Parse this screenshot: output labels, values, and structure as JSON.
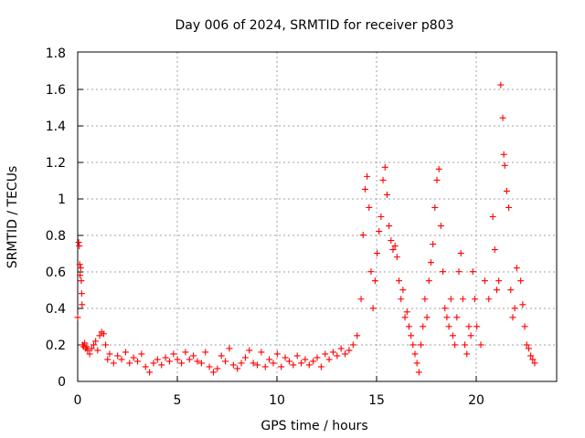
{
  "colors": {
    "series": "#ff0000",
    "grid": "#a0a0a0",
    "axis": "#000000",
    "background": "#ffffff"
  },
  "chart_data": {
    "type": "scatter",
    "title": "Day 006 of 2024, SRMTID for receiver p803",
    "xlabel": "GPS time / hours",
    "ylabel": "SRMTID / TECUs",
    "xlim": [
      0,
      24
    ],
    "ylim": [
      0,
      1.8
    ],
    "grid": true,
    "marker": "plus",
    "x_ticks": [
      0,
      5,
      10,
      15,
      20
    ],
    "x_tick_labels": [
      "0",
      "5",
      "10",
      "15",
      "20"
    ],
    "y_ticks": [
      0,
      0.2,
      0.4,
      0.6,
      0.8,
      1,
      1.2,
      1.4,
      1.6,
      1.8
    ],
    "y_tick_labels": [
      "0",
      "0.2",
      "0.4",
      "0.6",
      "0.8",
      "1",
      "1.2",
      "1.4",
      "1.6",
      "1.8"
    ],
    "series": [
      {
        "name": "SRMTID",
        "color": "#ff0000",
        "points": [
          [
            0.0,
            0.35
          ],
          [
            0.05,
            0.76
          ],
          [
            0.08,
            0.74
          ],
          [
            0.1,
            0.64
          ],
          [
            0.12,
            0.58
          ],
          [
            0.15,
            0.62
          ],
          [
            0.18,
            0.55
          ],
          [
            0.2,
            0.48
          ],
          [
            0.22,
            0.42
          ],
          [
            0.25,
            0.2
          ],
          [
            0.3,
            0.19
          ],
          [
            0.35,
            0.21
          ],
          [
            0.4,
            0.18
          ],
          [
            0.45,
            0.19
          ],
          [
            0.5,
            0.17
          ],
          [
            0.6,
            0.15
          ],
          [
            0.7,
            0.18
          ],
          [
            0.8,
            0.2
          ],
          [
            0.9,
            0.22
          ],
          [
            1.0,
            0.17
          ],
          [
            1.1,
            0.25
          ],
          [
            1.2,
            0.27
          ],
          [
            1.3,
            0.26
          ],
          [
            1.4,
            0.2
          ],
          [
            1.5,
            0.12
          ],
          [
            1.6,
            0.15
          ],
          [
            1.8,
            0.1
          ],
          [
            2.0,
            0.14
          ],
          [
            2.2,
            0.12
          ],
          [
            2.4,
            0.16
          ],
          [
            2.6,
            0.1
          ],
          [
            2.8,
            0.13
          ],
          [
            3.0,
            0.11
          ],
          [
            3.2,
            0.15
          ],
          [
            3.4,
            0.08
          ],
          [
            3.6,
            0.05
          ],
          [
            3.8,
            0.1
          ],
          [
            4.0,
            0.12
          ],
          [
            4.2,
            0.09
          ],
          [
            4.4,
            0.13
          ],
          [
            4.6,
            0.11
          ],
          [
            4.8,
            0.15
          ],
          [
            5.0,
            0.12
          ],
          [
            5.2,
            0.1
          ],
          [
            5.4,
            0.16
          ],
          [
            5.6,
            0.12
          ],
          [
            5.8,
            0.14
          ],
          [
            6.0,
            0.11
          ],
          [
            6.2,
            0.1
          ],
          [
            6.4,
            0.16
          ],
          [
            6.6,
            0.08
          ],
          [
            6.8,
            0.05
          ],
          [
            7.0,
            0.07
          ],
          [
            7.2,
            0.14
          ],
          [
            7.4,
            0.11
          ],
          [
            7.6,
            0.18
          ],
          [
            7.8,
            0.09
          ],
          [
            8.0,
            0.07
          ],
          [
            8.2,
            0.1
          ],
          [
            8.4,
            0.13
          ],
          [
            8.6,
            0.17
          ],
          [
            8.8,
            0.1
          ],
          [
            9.0,
            0.09
          ],
          [
            9.2,
            0.16
          ],
          [
            9.4,
            0.08
          ],
          [
            9.6,
            0.12
          ],
          [
            9.8,
            0.1
          ],
          [
            10.0,
            0.15
          ],
          [
            10.2,
            0.08
          ],
          [
            10.4,
            0.13
          ],
          [
            10.6,
            0.11
          ],
          [
            10.8,
            0.09
          ],
          [
            11.0,
            0.14
          ],
          [
            11.2,
            0.1
          ],
          [
            11.4,
            0.12
          ],
          [
            11.6,
            0.09
          ],
          [
            11.8,
            0.11
          ],
          [
            12.0,
            0.13
          ],
          [
            12.2,
            0.08
          ],
          [
            12.4,
            0.15
          ],
          [
            12.6,
            0.12
          ],
          [
            12.8,
            0.16
          ],
          [
            13.0,
            0.14
          ],
          [
            13.2,
            0.18
          ],
          [
            13.4,
            0.15
          ],
          [
            13.6,
            0.17
          ],
          [
            13.8,
            0.2
          ],
          [
            14.0,
            0.25
          ],
          [
            14.2,
            0.45
          ],
          [
            14.3,
            0.8
          ],
          [
            14.4,
            1.05
          ],
          [
            14.5,
            1.12
          ],
          [
            14.6,
            0.95
          ],
          [
            14.7,
            0.6
          ],
          [
            14.8,
            0.4
          ],
          [
            14.9,
            0.55
          ],
          [
            15.0,
            0.7
          ],
          [
            15.1,
            0.82
          ],
          [
            15.2,
            0.9
          ],
          [
            15.3,
            1.1
          ],
          [
            15.4,
            1.17
          ],
          [
            15.5,
            1.02
          ],
          [
            15.6,
            0.85
          ],
          [
            15.7,
            0.77
          ],
          [
            15.8,
            0.72
          ],
          [
            15.9,
            0.74
          ],
          [
            16.0,
            0.68
          ],
          [
            16.1,
            0.55
          ],
          [
            16.2,
            0.45
          ],
          [
            16.3,
            0.5
          ],
          [
            16.4,
            0.35
          ],
          [
            16.5,
            0.38
          ],
          [
            16.6,
            0.3
          ],
          [
            16.7,
            0.25
          ],
          [
            16.8,
            0.2
          ],
          [
            16.9,
            0.15
          ],
          [
            17.0,
            0.1
          ],
          [
            17.1,
            0.05
          ],
          [
            17.2,
            0.2
          ],
          [
            17.3,
            0.3
          ],
          [
            17.4,
            0.45
          ],
          [
            17.5,
            0.35
          ],
          [
            17.6,
            0.55
          ],
          [
            17.7,
            0.65
          ],
          [
            17.8,
            0.75
          ],
          [
            17.9,
            0.95
          ],
          [
            18.0,
            1.1
          ],
          [
            18.1,
            1.16
          ],
          [
            18.2,
            0.85
          ],
          [
            18.3,
            0.6
          ],
          [
            18.4,
            0.4
          ],
          [
            18.5,
            0.35
          ],
          [
            18.6,
            0.3
          ],
          [
            18.7,
            0.45
          ],
          [
            18.8,
            0.25
          ],
          [
            18.9,
            0.2
          ],
          [
            19.0,
            0.35
          ],
          [
            19.1,
            0.6
          ],
          [
            19.2,
            0.7
          ],
          [
            19.3,
            0.45
          ],
          [
            19.4,
            0.2
          ],
          [
            19.5,
            0.15
          ],
          [
            19.6,
            0.3
          ],
          [
            19.7,
            0.25
          ],
          [
            19.8,
            0.6
          ],
          [
            19.9,
            0.45
          ],
          [
            20.0,
            0.3
          ],
          [
            20.2,
            0.2
          ],
          [
            20.4,
            0.55
          ],
          [
            20.6,
            0.45
          ],
          [
            20.8,
            0.9
          ],
          [
            20.9,
            0.72
          ],
          [
            21.0,
            0.5
          ],
          [
            21.1,
            0.55
          ],
          [
            21.2,
            1.62
          ],
          [
            21.3,
            1.44
          ],
          [
            21.35,
            1.24
          ],
          [
            21.4,
            1.18
          ],
          [
            21.5,
            1.04
          ],
          [
            21.6,
            0.95
          ],
          [
            21.7,
            0.5
          ],
          [
            21.8,
            0.35
          ],
          [
            21.9,
            0.4
          ],
          [
            22.0,
            0.62
          ],
          [
            22.2,
            0.55
          ],
          [
            22.3,
            0.42
          ],
          [
            22.4,
            0.3
          ],
          [
            22.5,
            0.2
          ],
          [
            22.6,
            0.18
          ],
          [
            22.7,
            0.14
          ],
          [
            22.8,
            0.12
          ],
          [
            22.9,
            0.1
          ]
        ]
      }
    ]
  }
}
